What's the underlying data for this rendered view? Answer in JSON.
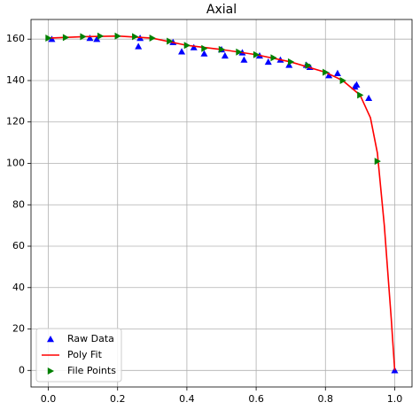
{
  "chart_data": {
    "type": "line",
    "title": "Axial",
    "xlim": [
      -0.05,
      1.05
    ],
    "ylim": [
      -8,
      169.5
    ],
    "xticks": [
      {
        "value": 0,
        "label": "0.0"
      },
      {
        "value": 0.2,
        "label": "0.2"
      },
      {
        "value": 0.4,
        "label": "0.4"
      },
      {
        "value": 0.6,
        "label": "0.6"
      },
      {
        "value": 0.8,
        "label": "0.8"
      },
      {
        "value": 1,
        "label": "1.0"
      }
    ],
    "yticks": [
      0,
      20,
      40,
      60,
      80,
      100,
      120,
      140,
      160
    ],
    "grid": true,
    "legend": "lower left",
    "series": [
      {
        "name": "Raw Data",
        "color": "#0000ff",
        "style": "markers",
        "marker": "triangle-up",
        "x": [
          0.01,
          0.12,
          0.14,
          0.26,
          0.265,
          0.36,
          0.385,
          0.42,
          0.45,
          0.5,
          0.51,
          0.56,
          0.565,
          0.61,
          0.635,
          0.67,
          0.695,
          0.745,
          0.755,
          0.81,
          0.835,
          0.885,
          0.89,
          0.925,
          1.0
        ],
        "values": [
          160,
          160.5,
          160,
          156.5,
          160.5,
          158.5,
          154,
          156,
          153,
          155,
          152,
          153.5,
          150,
          152,
          149,
          150,
          147.5,
          147.5,
          146.5,
          142.5,
          143.5,
          137,
          138,
          131.5,
          0
        ]
      },
      {
        "name": "Poly Fit",
        "color": "#ff0000",
        "style": "line",
        "x": [
          0,
          0.1,
          0.2,
          0.3,
          0.4,
          0.5,
          0.6,
          0.7,
          0.8,
          0.85,
          0.9,
          0.93,
          0.95,
          0.97,
          0.99,
          1.0
        ],
        "values": [
          160.5,
          161.2,
          161.5,
          160.5,
          157,
          155,
          152.5,
          149,
          144,
          140,
          133,
          122,
          105,
          70,
          25,
          0
        ]
      },
      {
        "name": "File Points",
        "color": "#008000",
        "style": "markers",
        "marker": "triangle-right",
        "x": [
          0,
          0.05,
          0.1,
          0.15,
          0.2,
          0.25,
          0.3,
          0.35,
          0.4,
          0.45,
          0.5,
          0.55,
          0.6,
          0.65,
          0.7,
          0.75,
          0.8,
          0.85,
          0.9,
          0.95
        ],
        "values": [
          160.5,
          160.8,
          161.2,
          161.5,
          161.5,
          161.2,
          160.5,
          159,
          157,
          155.5,
          155,
          153.8,
          152.5,
          151,
          149,
          147.3,
          144,
          140,
          133,
          101
        ]
      }
    ]
  }
}
